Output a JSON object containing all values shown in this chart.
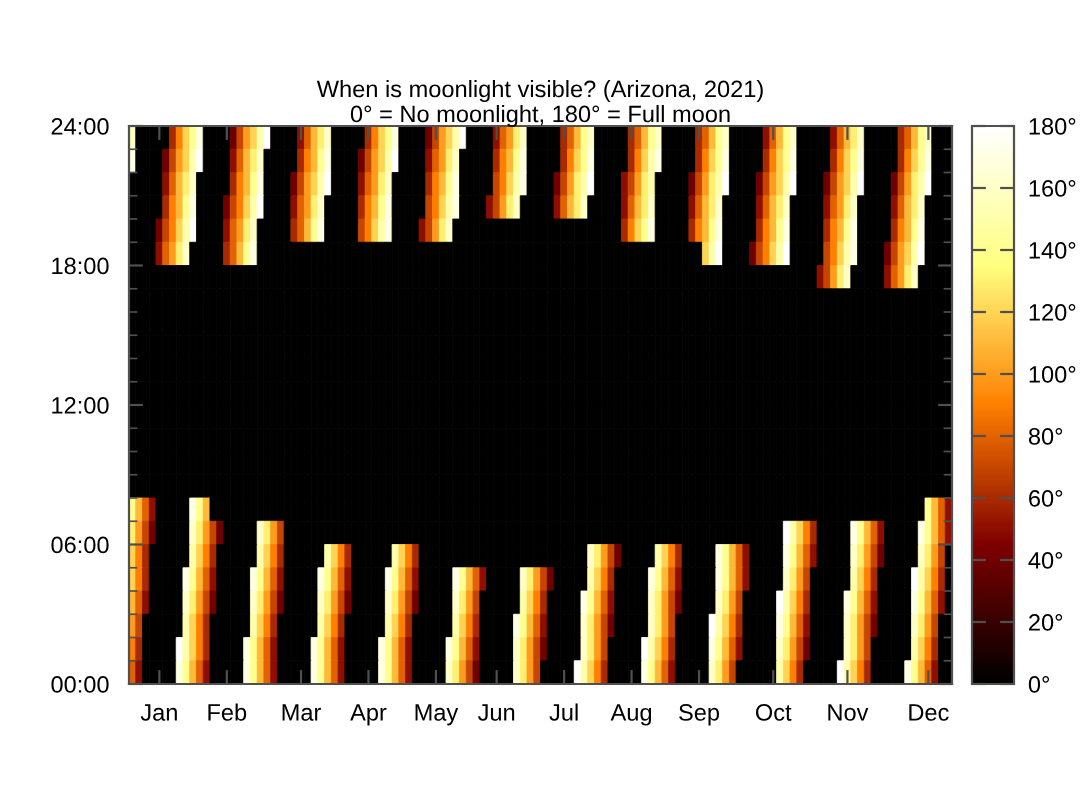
{
  "chart_data": {
    "type": "heatmap",
    "title": "When is moonlight visible? (Arizona, 2021)",
    "subtitle": "0° = No moonlight, 180° = Full moon",
    "categories": [
      null,
      null,
      null,
      null,
      "Jan",
      null,
      null,
      null,
      null,
      null,
      null,
      null,
      null,
      null,
      "Feb",
      null,
      null,
      null,
      null,
      null,
      null,
      null,
      null,
      null,
      null,
      "Mar",
      null,
      null,
      null,
      null,
      null,
      null,
      null,
      null,
      null,
      "Apr",
      null,
      null,
      null,
      null,
      null,
      null,
      null,
      null,
      null,
      "May",
      null,
      null,
      null,
      null,
      null,
      null,
      null,
      null,
      "Jun",
      null,
      null,
      null,
      null,
      null,
      null,
      null,
      null,
      null,
      "Jul",
      null,
      null,
      null,
      null,
      null,
      null,
      null,
      null,
      null,
      "Aug",
      null,
      null,
      null,
      null,
      null,
      null,
      null,
      null,
      null,
      "Sep",
      null,
      null,
      null,
      null,
      null,
      null,
      null,
      null,
      null,
      null,
      "Oct",
      null,
      null,
      null,
      null,
      null,
      null,
      null,
      null,
      null,
      null,
      "Nov",
      null,
      null,
      null,
      null,
      null,
      null,
      null,
      null,
      null,
      null,
      null,
      "Dec",
      null,
      null,
      null
    ],
    "ylim": [
      0,
      24
    ],
    "yticks": [
      {
        "value": 0,
        "label": "00:00"
      },
      {
        "value": 1,
        "label": null
      },
      {
        "value": 2,
        "label": null
      },
      {
        "value": 3,
        "label": null
      },
      {
        "value": 4,
        "label": null
      },
      {
        "value": 5,
        "label": null
      },
      {
        "value": 6,
        "label": "06:00"
      },
      {
        "value": 7,
        "label": null
      },
      {
        "value": 8,
        "label": null
      },
      {
        "value": 9,
        "label": null
      },
      {
        "value": 10,
        "label": null
      },
      {
        "value": 11,
        "label": null
      },
      {
        "value": 12,
        "label": "12:00"
      },
      {
        "value": 13,
        "label": null
      },
      {
        "value": 14,
        "label": null
      },
      {
        "value": 15,
        "label": null
      },
      {
        "value": 16,
        "label": null
      },
      {
        "value": 17,
        "label": null
      },
      {
        "value": 18,
        "label": "18:00"
      },
      {
        "value": 19,
        "label": null
      },
      {
        "value": 20,
        "label": null
      },
      {
        "value": 21,
        "label": null
      },
      {
        "value": 22,
        "label": null
      },
      {
        "value": 23,
        "label": null
      },
      {
        "value": 24,
        "label": "24:00"
      }
    ],
    "clim": [
      0,
      180
    ],
    "cticks": [
      {
        "value": 0,
        "label": "0°"
      },
      {
        "value": 20,
        "label": "20°"
      },
      {
        "value": 40,
        "label": "40°"
      },
      {
        "value": 60,
        "label": "60°"
      },
      {
        "value": 80,
        "label": "80°"
      },
      {
        "value": 100,
        "label": "100°"
      },
      {
        "value": 120,
        "label": "120°"
      },
      {
        "value": 140,
        "label": "140°"
      },
      {
        "value": 160,
        "label": "160°"
      },
      {
        "value": 180,
        "label": "180°"
      }
    ],
    "cells": [
      [
        160,
        0,
        0,
        0,
        0,
        0,
        60,
        90,
        120,
        140,
        170,
        0,
        0,
        0,
        0,
        40,
        70,
        100,
        120,
        150,
        180,
        0,
        0,
        0,
        0,
        50,
        80,
        110,
        130,
        160,
        0,
        0,
        0,
        0,
        0,
        60,
        90,
        120,
        140,
        170,
        0,
        0,
        0,
        0,
        40,
        70,
        100,
        120,
        150,
        180,
        0,
        0,
        0,
        0,
        50,
        80,
        100,
        130,
        160,
        0,
        0,
        0,
        0,
        0,
        60,
        80,
        110,
        140,
        160,
        0,
        0,
        0,
        0,
        0,
        60,
        80,
        110,
        140,
        160,
        0,
        0,
        0,
        0,
        0,
        60,
        80,
        110,
        140,
        160,
        0,
        0,
        0,
        0,
        0,
        50,
        80,
        110,
        140,
        160,
        0,
        0,
        0,
        0,
        0,
        50,
        80,
        110,
        130,
        160,
        0,
        0,
        0,
        0,
        0,
        60,
        80,
        110,
        140,
        160,
        0,
        0,
        0
      ],
      [
        170,
        0,
        0,
        0,
        0,
        40,
        70,
        100,
        120,
        150,
        180,
        0,
        0,
        0,
        0,
        50,
        80,
        110,
        130,
        160,
        0,
        0,
        0,
        0,
        0,
        60,
        90,
        110,
        140,
        170,
        0,
        0,
        0,
        0,
        40,
        70,
        100,
        120,
        150,
        180,
        0,
        0,
        0,
        0,
        50,
        80,
        100,
        130,
        160,
        0,
        0,
        0,
        0,
        0,
        60,
        90,
        110,
        140,
        170,
        0,
        0,
        0,
        0,
        0,
        60,
        90,
        120,
        140,
        170,
        0,
        0,
        0,
        0,
        0,
        60,
        90,
        120,
        150,
        170,
        0,
        0,
        0,
        0,
        0,
        60,
        90,
        120,
        140,
        170,
        0,
        0,
        0,
        0,
        0,
        60,
        90,
        120,
        140,
        170,
        0,
        0,
        0,
        0,
        0,
        60,
        90,
        120,
        140,
        170,
        0,
        0,
        0,
        0,
        0,
        60,
        90,
        120,
        140,
        170,
        0,
        0,
        0
      ],
      [
        0,
        0,
        0,
        0,
        0,
        50,
        80,
        110,
        130,
        160,
        0,
        0,
        0,
        0,
        0,
        60,
        90,
        110,
        140,
        170,
        0,
        0,
        0,
        0,
        40,
        70,
        100,
        120,
        150,
        180,
        0,
        0,
        0,
        0,
        50,
        80,
        100,
        130,
        160,
        0,
        0,
        0,
        0,
        0,
        60,
        90,
        110,
        140,
        170,
        0,
        0,
        0,
        0,
        0,
        70,
        90,
        120,
        150,
        170,
        0,
        0,
        0,
        0,
        40,
        70,
        100,
        130,
        150,
        180,
        0,
        0,
        0,
        0,
        50,
        70,
        100,
        130,
        150,
        0,
        0,
        0,
        0,
        0,
        40,
        70,
        100,
        130,
        150,
        180,
        0,
        0,
        0,
        0,
        40,
        70,
        100,
        120,
        150,
        180,
        0,
        0,
        0,
        0,
        40,
        70,
        100,
        120,
        150,
        180,
        0,
        0,
        0,
        0,
        40,
        70,
        100,
        130,
        150,
        180,
        0,
        0,
        0
      ],
      [
        0,
        0,
        0,
        0,
        0,
        60,
        90,
        110,
        140,
        170,
        0,
        0,
        0,
        0,
        40,
        70,
        90,
        120,
        150,
        180,
        0,
        0,
        0,
        0,
        50,
        80,
        100,
        130,
        160,
        0,
        0,
        0,
        0,
        0,
        60,
        90,
        110,
        140,
        170,
        0,
        0,
        0,
        0,
        0,
        70,
        90,
        120,
        150,
        170,
        0,
        0,
        0,
        0,
        50,
        70,
        100,
        130,
        160,
        0,
        0,
        0,
        0,
        0,
        50,
        80,
        110,
        130,
        160,
        0,
        0,
        0,
        0,
        0,
        50,
        80,
        110,
        130,
        160,
        0,
        0,
        0,
        0,
        0,
        50,
        80,
        110,
        130,
        160,
        0,
        0,
        0,
        0,
        0,
        50,
        80,
        110,
        130,
        160,
        0,
        0,
        0,
        0,
        0,
        50,
        80,
        100,
        130,
        160,
        0,
        0,
        0,
        0,
        0,
        50,
        80,
        110,
        130,
        160,
        0,
        0,
        0,
        0
      ],
      [
        0,
        0,
        0,
        0,
        40,
        70,
        90,
        120,
        150,
        180,
        0,
        0,
        0,
        0,
        50,
        80,
        100,
        130,
        160,
        0,
        0,
        0,
        0,
        0,
        60,
        80,
        110,
        140,
        170,
        0,
        0,
        0,
        0,
        0,
        70,
        90,
        120,
        150,
        170,
        0,
        0,
        0,
        0,
        50,
        70,
        100,
        130,
        160,
        0,
        0,
        0,
        0,
        0,
        0,
        0,
        0,
        0,
        0,
        0,
        0,
        0,
        0,
        0,
        0,
        0,
        0,
        0,
        0,
        0,
        0,
        0,
        0,
        0,
        60,
        90,
        120,
        140,
        170,
        0,
        0,
        0,
        0,
        0,
        60,
        90,
        110,
        140,
        170,
        0,
        0,
        0,
        0,
        0,
        60,
        90,
        110,
        140,
        170,
        0,
        0,
        0,
        0,
        0,
        60,
        90,
        110,
        140,
        170,
        0,
        0,
        0,
        0,
        0,
        60,
        90,
        110,
        140,
        170,
        0,
        0,
        0,
        0
      ],
      [
        0,
        0,
        0,
        0,
        50,
        80,
        100,
        130,
        160,
        0,
        0,
        0,
        0,
        0,
        60,
        80,
        110,
        140,
        170,
        0,
        0,
        0,
        0,
        0,
        0,
        0,
        0,
        0,
        0,
        0,
        0,
        0,
        0,
        0,
        0,
        0,
        0,
        0,
        0,
        0,
        0,
        0,
        0,
        0,
        0,
        0,
        0,
        0,
        0,
        0,
        0,
        0,
        0,
        0,
        0,
        0,
        0,
        0,
        0,
        0,
        0,
        0,
        0,
        0,
        0,
        0,
        0,
        0,
        0,
        0,
        0,
        0,
        0,
        0,
        0,
        0,
        0,
        0,
        0,
        0,
        0,
        0,
        0,
        0,
        0,
        120,
        150,
        180,
        0,
        0,
        0,
        0,
        40,
        70,
        90,
        120,
        150,
        180,
        0,
        0,
        0,
        0,
        0,
        70,
        90,
        120,
        150,
        170,
        0,
        0,
        0,
        0,
        40,
        70,
        100,
        120,
        150,
        180,
        0,
        0,
        0,
        0
      ],
      [
        0,
        0,
        0,
        0,
        0,
        0,
        0,
        0,
        0,
        0,
        0,
        0,
        0,
        0,
        0,
        0,
        0,
        0,
        0,
        0,
        0,
        0,
        0,
        0,
        0,
        0,
        0,
        0,
        0,
        0,
        0,
        0,
        0,
        0,
        0,
        0,
        0,
        0,
        0,
        0,
        0,
        0,
        0,
        0,
        0,
        0,
        0,
        0,
        0,
        0,
        0,
        0,
        0,
        0,
        0,
        0,
        0,
        0,
        0,
        0,
        0,
        0,
        0,
        0,
        0,
        0,
        0,
        0,
        0,
        0,
        0,
        0,
        0,
        0,
        0,
        0,
        0,
        0,
        0,
        0,
        0,
        0,
        0,
        0,
        0,
        0,
        0,
        0,
        0,
        0,
        0,
        0,
        0,
        0,
        0,
        0,
        0,
        0,
        0,
        0,
        0,
        0,
        50,
        70,
        100,
        130,
        160,
        0,
        0,
        0,
        0,
        0,
        50,
        80,
        100,
        130,
        160,
        0,
        0,
        0,
        0,
        0
      ],
      [
        0,
        0,
        0,
        0,
        0,
        0,
        0,
        0,
        0,
        0,
        0,
        0,
        0,
        0,
        0,
        0,
        0,
        0,
        0,
        0,
        0,
        0,
        0,
        0,
        0,
        0,
        0,
        0,
        0,
        0,
        0,
        0,
        0,
        0,
        0,
        0,
        0,
        0,
        0,
        0,
        0,
        0,
        0,
        0,
        0,
        0,
        0,
        0,
        0,
        0,
        0,
        0,
        0,
        0,
        0,
        0,
        0,
        0,
        0,
        0,
        0,
        0,
        0,
        0,
        0,
        0,
        0,
        0,
        0,
        0,
        0,
        0,
        0,
        0,
        0,
        0,
        0,
        0,
        0,
        0,
        0,
        0,
        0,
        0,
        0,
        0,
        0,
        0,
        0,
        0,
        0,
        0,
        0,
        0,
        0,
        0,
        0,
        0,
        0,
        0,
        0,
        0,
        0,
        0,
        0,
        0,
        0,
        0,
        0,
        0,
        0,
        0,
        0,
        0,
        0,
        0,
        0,
        0,
        0,
        0,
        0,
        0
      ],
      [
        0,
        0,
        0,
        0,
        0,
        0,
        0,
        0,
        0,
        0,
        0,
        0,
        0,
        0,
        0,
        0,
        0,
        0,
        0,
        0,
        0,
        0,
        0,
        0,
        0,
        0,
        0,
        0,
        0,
        0,
        0,
        0,
        0,
        0,
        0,
        0,
        0,
        0,
        0,
        0,
        0,
        0,
        0,
        0,
        0,
        0,
        0,
        0,
        0,
        0,
        0,
        0,
        0,
        0,
        0,
        0,
        0,
        0,
        0,
        0,
        0,
        0,
        0,
        0,
        0,
        0,
        0,
        0,
        0,
        0,
        0,
        0,
        0,
        0,
        0,
        0,
        0,
        0,
        0,
        0,
        0,
        0,
        0,
        0,
        0,
        0,
        0,
        0,
        0,
        0,
        0,
        0,
        0,
        0,
        0,
        0,
        0,
        0,
        0,
        0,
        0,
        0,
        0,
        0,
        0,
        0,
        0,
        0,
        0,
        0,
        0,
        0,
        0,
        0,
        0,
        0,
        0,
        0,
        0,
        0,
        0,
        0
      ],
      [
        0,
        0,
        0,
        0,
        0,
        0,
        0,
        0,
        0,
        0,
        0,
        0,
        0,
        0,
        0,
        0,
        0,
        0,
        0,
        0,
        0,
        0,
        0,
        0,
        0,
        0,
        0,
        0,
        0,
        0,
        0,
        0,
        0,
        0,
        0,
        0,
        0,
        0,
        0,
        0,
        0,
        0,
        0,
        0,
        0,
        0,
        0,
        0,
        0,
        0,
        0,
        0,
        0,
        0,
        0,
        0,
        0,
        0,
        0,
        0,
        0,
        0,
        0,
        0,
        0,
        0,
        0,
        0,
        0,
        0,
        0,
        0,
        0,
        0,
        0,
        0,
        0,
        0,
        0,
        0,
        0,
        0,
        0,
        0,
        0,
        0,
        0,
        0,
        0,
        0,
        0,
        0,
        0,
        0,
        0,
        0,
        0,
        0,
        0,
        0,
        0,
        0,
        0,
        0,
        0,
        0,
        0,
        0,
        0,
        0,
        0,
        0,
        0,
        0,
        0,
        0,
        0,
        0,
        0,
        0,
        0,
        0
      ],
      [
        0,
        0,
        0,
        0,
        0,
        0,
        0,
        0,
        0,
        0,
        0,
        0,
        0,
        0,
        0,
        0,
        0,
        0,
        0,
        0,
        0,
        0,
        0,
        0,
        0,
        0,
        0,
        0,
        0,
        0,
        0,
        0,
        0,
        0,
        0,
        0,
        0,
        0,
        0,
        0,
        0,
        0,
        0,
        0,
        0,
        0,
        0,
        0,
        0,
        0,
        0,
        0,
        0,
        0,
        0,
        0,
        0,
        0,
        0,
        0,
        0,
        0,
        0,
        0,
        0,
        0,
        0,
        0,
        0,
        0,
        0,
        0,
        0,
        0,
        0,
        0,
        0,
        0,
        0,
        0,
        0,
        0,
        0,
        0,
        0,
        0,
        0,
        0,
        0,
        0,
        0,
        0,
        0,
        0,
        0,
        0,
        0,
        0,
        0,
        0,
        0,
        0,
        0,
        0,
        0,
        0,
        0,
        0,
        0,
        0,
        0,
        0,
        0,
        0,
        0,
        0,
        0,
        0,
        0,
        0,
        0,
        0
      ],
      [
        0,
        0,
        0,
        0,
        0,
        0,
        0,
        0,
        0,
        0,
        0,
        0,
        0,
        0,
        0,
        0,
        0,
        0,
        0,
        0,
        0,
        0,
        0,
        0,
        0,
        0,
        0,
        0,
        0,
        0,
        0,
        0,
        0,
        0,
        0,
        0,
        0,
        0,
        0,
        0,
        0,
        0,
        0,
        0,
        0,
        0,
        0,
        0,
        0,
        0,
        0,
        0,
        0,
        0,
        0,
        0,
        0,
        0,
        0,
        0,
        0,
        0,
        0,
        0,
        0,
        0,
        0,
        0,
        0,
        0,
        0,
        0,
        0,
        0,
        0,
        0,
        0,
        0,
        0,
        0,
        0,
        0,
        0,
        0,
        0,
        0,
        0,
        0,
        0,
        0,
        0,
        0,
        0,
        0,
        0,
        0,
        0,
        0,
        0,
        0,
        0,
        0,
        0,
        0,
        0,
        0,
        0,
        0,
        0,
        0,
        0,
        0,
        0,
        0,
        0,
        0,
        0,
        0,
        0,
        0,
        0,
        0
      ],
      [
        0,
        0,
        0,
        0,
        0,
        0,
        0,
        0,
        0,
        0,
        0,
        0,
        0,
        0,
        0,
        0,
        0,
        0,
        0,
        0,
        0,
        0,
        0,
        0,
        0,
        0,
        0,
        0,
        0,
        0,
        0,
        0,
        0,
        0,
        0,
        0,
        0,
        0,
        0,
        0,
        0,
        0,
        0,
        0,
        0,
        0,
        0,
        0,
        0,
        0,
        0,
        0,
        0,
        0,
        0,
        0,
        0,
        0,
        0,
        0,
        0,
        0,
        0,
        0,
        0,
        0,
        0,
        0,
        0,
        0,
        0,
        0,
        0,
        0,
        0,
        0,
        0,
        0,
        0,
        0,
        0,
        0,
        0,
        0,
        0,
        0,
        0,
        0,
        0,
        0,
        0,
        0,
        0,
        0,
        0,
        0,
        0,
        0,
        0,
        0,
        0,
        0,
        0,
        0,
        0,
        0,
        0,
        0,
        0,
        0,
        0,
        0,
        0,
        0,
        0,
        0,
        0,
        0,
        0,
        0,
        0,
        0
      ],
      [
        0,
        0,
        0,
        0,
        0,
        0,
        0,
        0,
        0,
        0,
        0,
        0,
        0,
        0,
        0,
        0,
        0,
        0,
        0,
        0,
        0,
        0,
        0,
        0,
        0,
        0,
        0,
        0,
        0,
        0,
        0,
        0,
        0,
        0,
        0,
        0,
        0,
        0,
        0,
        0,
        0,
        0,
        0,
        0,
        0,
        0,
        0,
        0,
        0,
        0,
        0,
        0,
        0,
        0,
        0,
        0,
        0,
        0,
        0,
        0,
        0,
        0,
        0,
        0,
        0,
        0,
        0,
        0,
        0,
        0,
        0,
        0,
        0,
        0,
        0,
        0,
        0,
        0,
        0,
        0,
        0,
        0,
        0,
        0,
        0,
        0,
        0,
        0,
        0,
        0,
        0,
        0,
        0,
        0,
        0,
        0,
        0,
        0,
        0,
        0,
        0,
        0,
        0,
        0,
        0,
        0,
        0,
        0,
        0,
        0,
        0,
        0,
        0,
        0,
        0,
        0,
        0,
        0,
        0,
        0,
        0,
        0
      ],
      [
        0,
        0,
        0,
        0,
        0,
        0,
        0,
        0,
        0,
        0,
        0,
        0,
        0,
        0,
        0,
        0,
        0,
        0,
        0,
        0,
        0,
        0,
        0,
        0,
        0,
        0,
        0,
        0,
        0,
        0,
        0,
        0,
        0,
        0,
        0,
        0,
        0,
        0,
        0,
        0,
        0,
        0,
        0,
        0,
        0,
        0,
        0,
        0,
        0,
        0,
        0,
        0,
        0,
        0,
        0,
        0,
        0,
        0,
        0,
        0,
        0,
        0,
        0,
        0,
        0,
        0,
        0,
        0,
        0,
        0,
        0,
        0,
        0,
        0,
        0,
        0,
        0,
        0,
        0,
        0,
        0,
        0,
        0,
        0,
        0,
        0,
        0,
        0,
        0,
        0,
        0,
        0,
        0,
        0,
        0,
        0,
        0,
        0,
        0,
        0,
        0,
        0,
        0,
        0,
        0,
        0,
        0,
        0,
        0,
        0,
        0,
        0,
        0,
        0,
        0,
        0,
        0,
        0,
        0,
        0,
        0,
        0
      ],
      [
        0,
        0,
        0,
        0,
        0,
        0,
        0,
        0,
        0,
        0,
        0,
        0,
        0,
        0,
        0,
        0,
        0,
        0,
        0,
        0,
        0,
        0,
        0,
        0,
        0,
        0,
        0,
        0,
        0,
        0,
        0,
        0,
        0,
        0,
        0,
        0,
        0,
        0,
        0,
        0,
        0,
        0,
        0,
        0,
        0,
        0,
        0,
        0,
        0,
        0,
        0,
        0,
        0,
        0,
        0,
        0,
        0,
        0,
        0,
        0,
        0,
        0,
        0,
        0,
        0,
        0,
        0,
        0,
        0,
        0,
        0,
        0,
        0,
        0,
        0,
        0,
        0,
        0,
        0,
        0,
        0,
        0,
        0,
        0,
        0,
        0,
        0,
        0,
        0,
        0,
        0,
        0,
        0,
        0,
        0,
        0,
        0,
        0,
        0,
        0,
        0,
        0,
        0,
        0,
        0,
        0,
        0,
        0,
        0,
        0,
        0,
        0,
        0,
        0,
        0,
        0,
        0,
        0,
        0,
        0,
        0,
        0
      ],
      [
        140,
        110,
        80,
        50,
        0,
        0,
        0,
        0,
        0,
        170,
        140,
        110,
        0,
        0,
        0,
        0,
        0,
        0,
        0,
        0,
        0,
        0,
        0,
        0,
        0,
        0,
        0,
        0,
        0,
        0,
        0,
        0,
        0,
        0,
        0,
        0,
        0,
        0,
        0,
        0,
        0,
        0,
        0,
        0,
        0,
        0,
        0,
        0,
        0,
        0,
        0,
        0,
        0,
        0,
        0,
        0,
        0,
        0,
        0,
        0,
        0,
        0,
        0,
        0,
        0,
        0,
        0,
        0,
        0,
        0,
        0,
        0,
        0,
        0,
        0,
        0,
        0,
        0,
        0,
        0,
        0,
        0,
        0,
        0,
        0,
        0,
        0,
        0,
        0,
        0,
        0,
        0,
        0,
        0,
        0,
        0,
        0,
        0,
        0,
        0,
        0,
        0,
        0,
        0,
        0,
        0,
        0,
        0,
        0,
        0,
        0,
        0,
        0,
        0,
        0,
        0,
        0,
        0,
        140,
        110,
        80,
        50
      ],
      [
        130,
        100,
        70,
        40,
        0,
        0,
        0,
        0,
        0,
        160,
        130,
        100,
        70,
        40,
        0,
        0,
        0,
        0,
        0,
        160,
        130,
        100,
        70,
        0,
        0,
        0,
        0,
        0,
        0,
        0,
        0,
        0,
        0,
        0,
        0,
        0,
        0,
        0,
        0,
        0,
        0,
        0,
        0,
        0,
        0,
        0,
        0,
        0,
        0,
        0,
        0,
        0,
        0,
        0,
        0,
        0,
        0,
        0,
        0,
        0,
        0,
        0,
        0,
        0,
        0,
        0,
        0,
        0,
        0,
        0,
        0,
        0,
        0,
        0,
        0,
        0,
        0,
        0,
        0,
        0,
        0,
        0,
        0,
        0,
        0,
        0,
        0,
        0,
        0,
        0,
        0,
        0,
        0,
        0,
        0,
        0,
        0,
        180,
        150,
        120,
        90,
        60,
        0,
        0,
        0,
        0,
        0,
        170,
        140,
        110,
        80,
        50,
        0,
        0,
        0,
        0,
        0,
        170,
        140,
        110,
        80,
        50
      ],
      [
        120,
        90,
        60,
        0,
        0,
        0,
        0,
        0,
        0,
        150,
        120,
        90,
        60,
        0,
        0,
        0,
        0,
        0,
        0,
        150,
        120,
        90,
        60,
        0,
        0,
        0,
        0,
        0,
        0,
        150,
        120,
        90,
        60,
        0,
        0,
        0,
        0,
        0,
        0,
        150,
        120,
        90,
        60,
        0,
        0,
        0,
        0,
        0,
        0,
        0,
        0,
        0,
        0,
        0,
        0,
        0,
        0,
        0,
        0,
        0,
        0,
        0,
        0,
        0,
        0,
        0,
        0,
        0,
        160,
        130,
        100,
        70,
        40,
        0,
        0,
        0,
        0,
        0,
        150,
        120,
        90,
        60,
        0,
        0,
        0,
        0,
        0,
        170,
        140,
        110,
        80,
        50,
        0,
        0,
        0,
        0,
        0,
        170,
        140,
        110,
        80,
        50,
        0,
        0,
        0,
        0,
        0,
        160,
        130,
        100,
        70,
        40,
        0,
        0,
        0,
        0,
        0,
        160,
        130,
        100,
        70,
        0
      ],
      [
        120,
        90,
        60,
        0,
        0,
        0,
        0,
        0,
        170,
        140,
        110,
        80,
        50,
        0,
        0,
        0,
        0,
        0,
        170,
        140,
        110,
        80,
        50,
        0,
        0,
        0,
        0,
        0,
        170,
        140,
        110,
        80,
        50,
        0,
        0,
        0,
        0,
        0,
        170,
        140,
        110,
        80,
        50,
        0,
        0,
        0,
        0,
        0,
        170,
        140,
        110,
        80,
        50,
        0,
        0,
        0,
        0,
        0,
        160,
        130,
        100,
        70,
        40,
        0,
        0,
        0,
        0,
        0,
        150,
        120,
        90,
        60,
        0,
        0,
        0,
        0,
        0,
        170,
        140,
        110,
        80,
        50,
        0,
        0,
        0,
        0,
        0,
        170,
        140,
        110,
        80,
        50,
        0,
        0,
        0,
        0,
        0,
        160,
        130,
        100,
        70,
        0,
        0,
        0,
        0,
        0,
        0,
        150,
        120,
        90,
        60,
        0,
        0,
        0,
        0,
        0,
        180,
        150,
        120,
        90,
        60,
        0
      ],
      [
        110,
        80,
        50,
        0,
        0,
        0,
        0,
        0,
        160,
        130,
        100,
        70,
        40,
        0,
        0,
        0,
        0,
        0,
        160,
        130,
        100,
        70,
        40,
        0,
        0,
        0,
        0,
        0,
        160,
        130,
        100,
        70,
        40,
        0,
        0,
        0,
        0,
        0,
        160,
        130,
        100,
        70,
        40,
        0,
        0,
        0,
        0,
        0,
        160,
        130,
        100,
        70,
        0,
        0,
        0,
        0,
        0,
        0,
        150,
        120,
        90,
        60,
        0,
        0,
        0,
        0,
        0,
        170,
        140,
        110,
        80,
        50,
        0,
        0,
        0,
        0,
        0,
        160,
        130,
        100,
        70,
        40,
        0,
        0,
        0,
        0,
        0,
        160,
        130,
        100,
        70,
        0,
        0,
        0,
        0,
        0,
        180,
        150,
        120,
        90,
        60,
        0,
        0,
        0,
        0,
        0,
        170,
        140,
        110,
        80,
        50,
        0,
        0,
        0,
        0,
        0,
        170,
        140,
        110,
        80,
        50,
        0
      ],
      [
        100,
        70,
        0,
        0,
        0,
        0,
        0,
        0,
        150,
        120,
        90,
        60,
        0,
        0,
        0,
        0,
        0,
        0,
        150,
        120,
        90,
        60,
        0,
        0,
        0,
        0,
        0,
        0,
        150,
        120,
        90,
        60,
        0,
        0,
        0,
        0,
        0,
        0,
        150,
        120,
        90,
        60,
        0,
        0,
        0,
        0,
        0,
        0,
        150,
        120,
        90,
        60,
        0,
        0,
        0,
        0,
        0,
        170,
        140,
        110,
        80,
        50,
        0,
        0,
        0,
        0,
        0,
        160,
        130,
        100,
        70,
        40,
        0,
        0,
        0,
        0,
        0,
        160,
        130,
        100,
        70,
        0,
        0,
        0,
        0,
        0,
        180,
        150,
        120,
        90,
        60,
        0,
        0,
        0,
        0,
        0,
        170,
        140,
        110,
        80,
        50,
        0,
        0,
        0,
        0,
        0,
        160,
        130,
        100,
        70,
        40,
        0,
        0,
        0,
        0,
        0,
        160,
        130,
        100,
        70,
        0,
        0
      ],
      [
        90,
        60,
        0,
        0,
        0,
        0,
        0,
        180,
        150,
        120,
        90,
        60,
        0,
        0,
        0,
        0,
        0,
        170,
        140,
        110,
        80,
        50,
        0,
        0,
        0,
        0,
        0,
        170,
        140,
        110,
        80,
        50,
        0,
        0,
        0,
        0,
        0,
        170,
        140,
        110,
        80,
        50,
        0,
        0,
        0,
        0,
        0,
        170,
        140,
        110,
        80,
        50,
        0,
        0,
        0,
        0,
        0,
        160,
        130,
        100,
        70,
        40,
        0,
        0,
        0,
        0,
        0,
        160,
        130,
        100,
        70,
        0,
        0,
        0,
        0,
        0,
        180,
        150,
        120,
        90,
        60,
        0,
        0,
        0,
        0,
        0,
        170,
        140,
        110,
        80,
        50,
        0,
        0,
        0,
        0,
        0,
        160,
        130,
        100,
        70,
        40,
        0,
        0,
        0,
        0,
        0,
        160,
        130,
        100,
        70,
        0,
        0,
        0,
        0,
        0,
        0,
        150,
        120,
        90,
        60,
        0,
        0
      ],
      [
        80,
        50,
        0,
        0,
        0,
        0,
        0,
        170,
        140,
        110,
        80,
        50,
        0,
        0,
        0,
        0,
        0,
        170,
        140,
        110,
        80,
        50,
        0,
        0,
        0,
        0,
        0,
        170,
        140,
        110,
        80,
        50,
        0,
        0,
        0,
        0,
        0,
        170,
        140,
        110,
        80,
        50,
        0,
        0,
        0,
        0,
        0,
        160,
        130,
        100,
        70,
        40,
        0,
        0,
        0,
        0,
        0,
        160,
        130,
        100,
        70,
        0,
        0,
        0,
        0,
        0,
        180,
        150,
        120,
        90,
        60,
        0,
        0,
        0,
        0,
        0,
        170,
        140,
        110,
        80,
        50,
        0,
        0,
        0,
        0,
        0,
        160,
        130,
        100,
        70,
        0,
        0,
        0,
        0,
        0,
        0,
        150,
        120,
        90,
        60,
        0,
        0,
        0,
        0,
        0,
        180,
        150,
        120,
        90,
        60,
        0,
        0,
        0,
        0,
        0,
        170,
        140,
        110,
        80,
        50,
        0,
        0
      ]
    ]
  }
}
